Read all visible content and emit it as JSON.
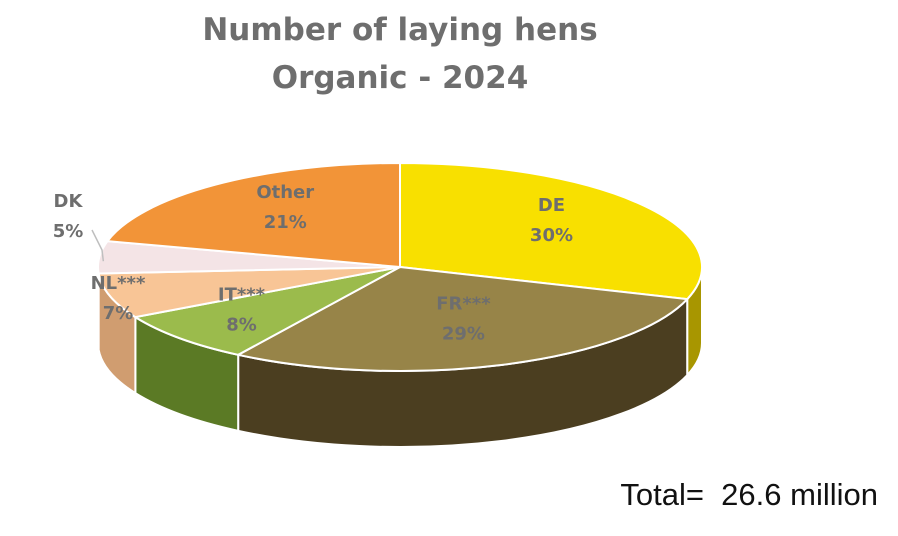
{
  "chart_data": {
    "type": "pie",
    "title": [
      "Number of laying hens",
      "Organic - 2024"
    ],
    "slices": [
      {
        "name": "DE",
        "label": "30%",
        "value": 30,
        "color": "#f8e000",
        "side": "#a89600"
      },
      {
        "name": "FR***",
        "label": "29%",
        "value": 29,
        "color": "#978448",
        "side": "#4b3e20"
      },
      {
        "name": "IT***",
        "label": "8%",
        "value": 8,
        "color": "#9bbb4c",
        "side": "#5b7a25"
      },
      {
        "name": "NL***",
        "label": "7%",
        "value": 7,
        "color": "#f8c596",
        "side": "#d09d70"
      },
      {
        "name": "DK",
        "label": "5%",
        "value": 5,
        "color": "#f4e4e6",
        "side": "#cdb9bb"
      },
      {
        "name": "Other",
        "label": "21%",
        "value": 21,
        "color": "#f29438",
        "side": "#b5661e"
      }
    ],
    "label_color": "#6e6e6e",
    "annotation": "Total=  26.6 million"
  }
}
